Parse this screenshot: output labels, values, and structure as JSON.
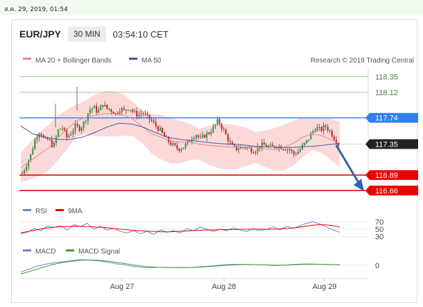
{
  "topbar": {
    "date": "ส.ค. 29, 2019, 01:54"
  },
  "header": {
    "pair": "EUR/JPY",
    "timeframe": "30 MIN",
    "time": "03:54:10 CET"
  },
  "legend": {
    "ma20": "MA 20 + Bollinger Bands",
    "ma50": "MA 50",
    "credit": "Research © 2019 Trading Central",
    "rsi": "RSI",
    "ma9": "9MA",
    "macd": "MACD",
    "macd_signal": "MACD Signal"
  },
  "colors": {
    "ma20": "#e88888",
    "ma50": "#3a5ea8",
    "band": "#fcd9d9",
    "up": "#3a9a44",
    "down": "#c43030",
    "resistance": "#2f7fe8",
    "support": "#ee0000",
    "green_level": "#9ccf7c",
    "arrow": "#2f64a8",
    "rsi": "#6688cc",
    "macd": "#6688cc",
    "signal": "#4a9a2a"
  },
  "chart_data": [
    {
      "type": "candlestick",
      "title": "EUR/JPY",
      "timeframe": "30 MIN",
      "x_labels": [
        "Aug 27",
        "Aug 28",
        "Aug 29"
      ],
      "ylim": [
        116.55,
        118.5
      ],
      "levels": [
        {
          "value": 118.35,
          "label": "118.35",
          "kind": "target"
        },
        {
          "value": 118.12,
          "label": "118.12",
          "kind": "target"
        },
        {
          "value": 117.74,
          "label": "117.74",
          "kind": "resistance"
        },
        {
          "value": 117.35,
          "label": "117.35",
          "kind": "last_price"
        },
        {
          "value": 116.89,
          "label": "116.89",
          "kind": "support"
        },
        {
          "value": 116.66,
          "label": "116.66",
          "kind": "support"
        }
      ],
      "price_path": [
        116.92,
        117.05,
        117.2,
        117.45,
        117.55,
        117.4,
        117.42,
        117.3,
        117.55,
        117.6,
        117.45,
        117.52,
        117.62,
        117.58,
        117.68,
        117.85,
        117.9,
        117.82,
        117.95,
        117.88,
        117.85,
        117.8,
        117.88,
        117.84,
        117.9,
        117.82,
        117.78,
        117.82,
        117.75,
        117.7,
        117.62,
        117.55,
        117.45,
        117.38,
        117.32,
        117.28,
        117.3,
        117.35,
        117.45,
        117.5,
        117.42,
        117.48,
        117.52,
        117.6,
        117.7,
        117.58,
        117.45,
        117.32,
        117.28,
        117.3,
        117.31,
        117.28,
        117.25,
        117.3,
        117.34,
        117.32,
        117.3,
        117.33,
        117.31,
        117.29,
        117.27,
        117.2,
        117.24,
        117.32,
        117.4,
        117.52,
        117.6,
        117.55,
        117.62,
        117.55,
        117.45,
        117.35
      ],
      "series": [
        {
          "name": "MA 20 + Bollinger Bands",
          "values": [
            117.0,
            117.1,
            117.2,
            117.3,
            117.45,
            117.58,
            117.7,
            117.75,
            117.78,
            117.8,
            117.8,
            117.78,
            117.72,
            117.6,
            117.5,
            117.45,
            117.4,
            117.38,
            117.38,
            117.35,
            117.33,
            117.32,
            117.31,
            117.3,
            117.31,
            117.3,
            117.28,
            117.27,
            117.3,
            117.36,
            117.45,
            117.5,
            117.48,
            117.42,
            117.35
          ]
        },
        {
          "name": "MA 50",
          "values": [
            117.62,
            117.5,
            117.45,
            117.42,
            117.42,
            117.45,
            117.52,
            117.6,
            117.66,
            117.65,
            117.6,
            117.52,
            117.45,
            117.42,
            117.4,
            117.38,
            117.36,
            117.35,
            117.34,
            117.32,
            117.31,
            117.3,
            117.3,
            117.31,
            117.32,
            117.34,
            117.36
          ]
        }
      ]
    },
    {
      "type": "line",
      "title": "RSI",
      "yticks": [
        70,
        50,
        30
      ],
      "ylim": [
        20,
        80
      ],
      "series": [
        {
          "name": "RSI",
          "values": [
            38,
            42,
            52,
            46,
            58,
            55,
            60,
            48,
            62,
            57,
            66,
            50,
            58,
            48,
            52,
            44,
            40,
            46,
            38,
            44,
            36,
            48,
            42,
            46,
            40,
            52,
            46,
            56,
            50,
            44,
            50,
            46,
            54,
            48,
            44,
            52,
            46,
            50,
            56,
            48,
            58,
            52,
            60,
            66,
            70,
            64,
            56,
            48,
            42
          ]
        },
        {
          "name": "9MA",
          "values": [
            40,
            44,
            48,
            52,
            54,
            56,
            57,
            58,
            58,
            57,
            56,
            55,
            53,
            51,
            49,
            47,
            46,
            45,
            44,
            43,
            43,
            44,
            45,
            46,
            47,
            48,
            48,
            49,
            49,
            49,
            50,
            50,
            50,
            50,
            50,
            51,
            52,
            54,
            57,
            60,
            62,
            62,
            60,
            56
          ]
        }
      ]
    },
    {
      "type": "line",
      "title": "MACD",
      "yticks": [
        0
      ],
      "ylim": [
        -1,
        1
      ],
      "series": [
        {
          "name": "MACD",
          "values": [
            -0.7,
            -0.4,
            -0.1,
            0.1,
            0.25,
            0.35,
            0.45,
            0.55,
            0.58,
            0.52,
            0.42,
            0.3,
            0.15,
            0.05,
            -0.1,
            -0.2,
            -0.25,
            -0.22,
            -0.2,
            -0.22,
            -0.24,
            -0.22,
            -0.18,
            -0.12,
            -0.05,
            0.02,
            0.08,
            0.1,
            0.1,
            0.08,
            0.05,
            0.02,
            -0.02,
            0.02,
            0.08,
            0.12,
            0.14,
            0.12,
            0.1,
            0.08,
            0.05
          ]
        },
        {
          "name": "MACD Signal",
          "values": [
            -0.9,
            -0.65,
            -0.4,
            -0.15,
            0.08,
            0.25,
            0.38,
            0.48,
            0.54,
            0.55,
            0.5,
            0.42,
            0.3,
            0.18,
            0.05,
            -0.06,
            -0.15,
            -0.2,
            -0.22,
            -0.22,
            -0.22,
            -0.22,
            -0.2,
            -0.16,
            -0.1,
            -0.04,
            0.02,
            0.06,
            0.08,
            0.08,
            0.06,
            0.04,
            0.02,
            0.02,
            0.04,
            0.08,
            0.1,
            0.11,
            0.1,
            0.08,
            0.06
          ]
        }
      ]
    }
  ]
}
